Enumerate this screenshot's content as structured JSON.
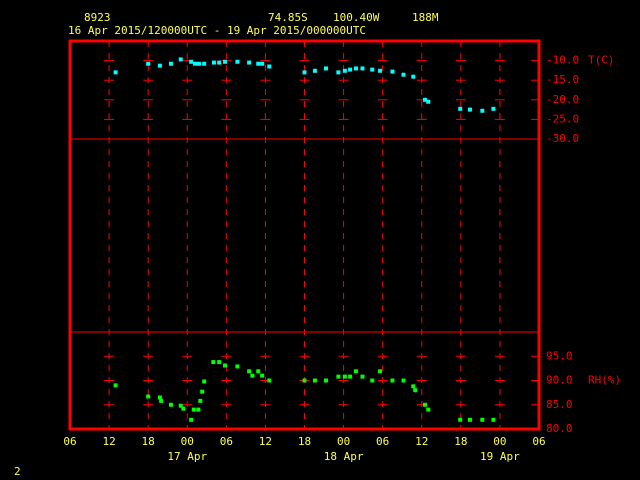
{
  "chart_data": {
    "type": "scatter",
    "title": "8923",
    "latitude": "74.85S",
    "longitude": "100.40W",
    "elevation": "188M",
    "subtitle": "16 Apr 2015/120000UTC - 19 Apr 2015/000000UTC",
    "page_number": "2",
    "xlim": [
      0,
      72
    ],
    "xticks": [
      {
        "value": 0,
        "label": "06"
      },
      {
        "value": 6,
        "label": "12"
      },
      {
        "value": 12,
        "label": "18"
      },
      {
        "value": 18,
        "label": "00"
      },
      {
        "value": 24,
        "label": "06"
      },
      {
        "value": 30,
        "label": "12"
      },
      {
        "value": 36,
        "label": "18"
      },
      {
        "value": 42,
        "label": "00"
      },
      {
        "value": 48,
        "label": "06"
      },
      {
        "value": 54,
        "label": "12"
      },
      {
        "value": 60,
        "label": "18"
      },
      {
        "value": 66,
        "label": "00"
      },
      {
        "value": 72,
        "label": "06"
      }
    ],
    "day_labels": [
      {
        "value": 18,
        "label": "17 Apr"
      },
      {
        "value": 42,
        "label": "18 Apr"
      },
      {
        "value": 66,
        "label": "19 Apr"
      }
    ],
    "ylim": [
      -30,
      -5
    ],
    "yticks": [
      {
        "value": -10,
        "label": "-10.0"
      },
      {
        "value": -15,
        "label": "-15.0"
      },
      {
        "value": -20,
        "label": "-20.0"
      },
      {
        "value": -25,
        "label": "-25.0"
      },
      {
        "value": -30,
        "label": "-30.0"
      }
    ],
    "y2lim": [
      80,
      100
    ],
    "y2ticks": [
      {
        "value": 95,
        "label": "95.0"
      },
      {
        "value": 90,
        "label": "90.0"
      },
      {
        "value": 85,
        "label": "85.0"
      },
      {
        "value": 80,
        "label": "80.0"
      }
    ],
    "grid": true,
    "series": [
      {
        "name": "T(C)",
        "color": "#00ffff",
        "axis": "y",
        "x": [
          7,
          12,
          13.8,
          15.5,
          17,
          18.6,
          19.2,
          19.8,
          20.6,
          22.1,
          22.9,
          23.8,
          25.7,
          27.5,
          28.9,
          29.5,
          30.6,
          36,
          37.6,
          39.3,
          41.2,
          42.2,
          43,
          43.9,
          44.9,
          46.4,
          47.6,
          49.5,
          51.2,
          52.7,
          54.5,
          55,
          59.9,
          61.4,
          63.3,
          65
        ],
        "values": [
          -13,
          -10.8,
          -11.3,
          -10.8,
          -9.7,
          -10.3,
          -10.8,
          -10.8,
          -10.8,
          -10.5,
          -10.5,
          -10.3,
          -10.3,
          -10.5,
          -10.8,
          -10.8,
          -11.5,
          -13,
          -12.6,
          -12,
          -13,
          -12.6,
          -12.3,
          -12,
          -12,
          -12.3,
          -12.6,
          -12.8,
          -13.6,
          -14.1,
          -20,
          -20.5,
          -22.3,
          -22.5,
          -22.8,
          -22.3
        ]
      },
      {
        "name": "RH(%)",
        "color": "#00ff00",
        "axis": "y2",
        "x": [
          7,
          12,
          13.8,
          14,
          15.5,
          17,
          17.4,
          18.6,
          19,
          19.7,
          20,
          20.3,
          20.6,
          22,
          22.9,
          23.8,
          25.7,
          27.5,
          28,
          28.9,
          29.5,
          30.6,
          36,
          37.6,
          39.3,
          41.2,
          42.2,
          43,
          43.9,
          44.9,
          46.4,
          47.6,
          49.5,
          51.2,
          52.7,
          53,
          54.5,
          55,
          59.9,
          61.4,
          63.3,
          65
        ],
        "values": [
          89,
          86.7,
          86.5,
          85.8,
          85,
          84.8,
          84.2,
          81.9,
          84,
          84,
          85.8,
          87.7,
          89.8,
          93.8,
          93.8,
          93.1,
          92.9,
          91.9,
          91,
          91.9,
          91,
          90,
          90,
          90,
          90,
          90.8,
          90.8,
          90.8,
          91.9,
          90.8,
          90,
          91.9,
          90,
          90,
          88.8,
          88,
          85,
          84,
          81.9,
          81.9,
          81.9,
          81.9
        ]
      }
    ]
  }
}
